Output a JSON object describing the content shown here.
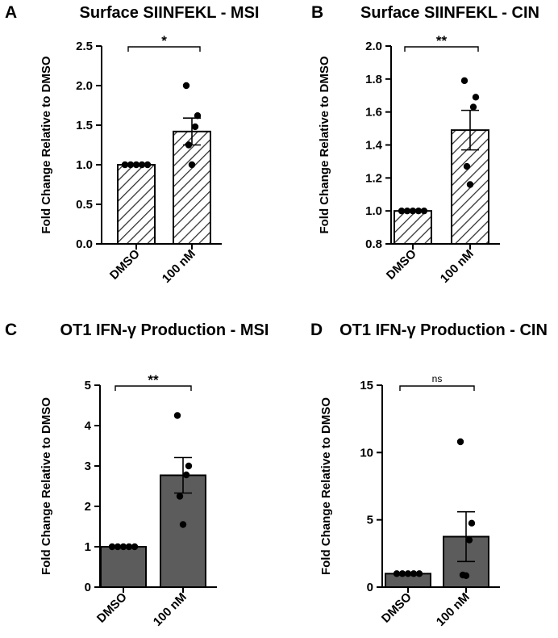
{
  "colors": {
    "axis": "#000000",
    "dark_bar": "#5c5c5c",
    "hatch_bar": "#ffffff",
    "point": "#000000"
  },
  "chart_data": [
    {
      "id": "A",
      "letter": "A",
      "type": "bar",
      "style": "hatched",
      "title": "Surface SIINFEKL - MSI",
      "ylabel": "Fold Change Relative to DMSO",
      "categories": [
        "DMSO",
        "100 nM"
      ],
      "values": [
        1.0,
        1.42
      ],
      "error": [
        0.0,
        0.17
      ],
      "points": [
        [
          1.0,
          1.0,
          1.0,
          1.0,
          1.0
        ],
        [
          2.0,
          1.62,
          1.48,
          1.25,
          1.0
        ]
      ],
      "ylim": [
        0,
        2.5
      ],
      "yticks": [
        "0.0",
        "0.5",
        "1.0",
        "1.5",
        "2.0",
        "2.5"
      ],
      "significance": "*"
    },
    {
      "id": "B",
      "letter": "B",
      "type": "bar",
      "style": "hatched",
      "title": "Surface SIINFEKL - CIN",
      "ylabel": "Fold Change Relative to DMSO",
      "categories": [
        "DMSO",
        "100 nM"
      ],
      "values": [
        1.0,
        1.49
      ],
      "error": [
        0.0,
        0.12
      ],
      "points": [
        [
          1.0,
          1.0,
          1.0,
          1.0,
          1.0
        ],
        [
          1.79,
          1.69,
          1.63,
          1.27,
          1.16
        ]
      ],
      "ylim": [
        0.8,
        2.0
      ],
      "yticks": [
        "0.8",
        "1.0",
        "1.2",
        "1.4",
        "1.6",
        "1.8",
        "2.0"
      ],
      "significance": "**"
    },
    {
      "id": "C",
      "letter": "C",
      "type": "bar",
      "style": "dark",
      "title": "OT1 IFN-γ Production - MSI",
      "ylabel": "Fold Change Relative to DMSO",
      "categories": [
        "DMSO",
        "100 nM"
      ],
      "values": [
        1.0,
        2.77
      ],
      "error": [
        0.0,
        0.44
      ],
      "points": [
        [
          1.0,
          1.0,
          1.0,
          1.0,
          1.0
        ],
        [
          4.25,
          3.0,
          2.78,
          2.25,
          1.55
        ]
      ],
      "ylim": [
        0,
        5
      ],
      "yticks": [
        "0",
        "1",
        "2",
        "3",
        "4",
        "5"
      ],
      "significance": "**"
    },
    {
      "id": "D",
      "letter": "D",
      "type": "bar",
      "style": "dark",
      "title": "OT1 IFN-γ Production - CIN",
      "ylabel": "Fold Change Relative to DMSO",
      "categories": [
        "DMSO",
        "100 nM"
      ],
      "values": [
        1.0,
        3.75
      ],
      "error": [
        0.0,
        1.85
      ],
      "points": [
        [
          1.0,
          1.0,
          1.0,
          1.0,
          1.0
        ],
        [
          10.8,
          4.75,
          3.5,
          0.9,
          0.85
        ]
      ],
      "ylim": [
        0,
        15
      ],
      "yticks": [
        "0",
        "5",
        "10",
        "15"
      ],
      "significance": "ns"
    }
  ]
}
